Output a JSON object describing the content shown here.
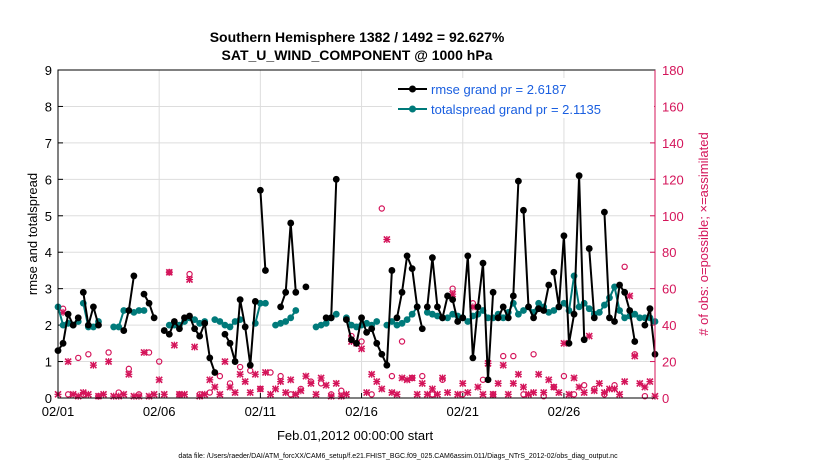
{
  "chart_data": {
    "type": "line",
    "title_line1": "Southern Hemisphere 1382 / 1492 = 92.627%",
    "title_line2": "SAT_U_WIND_COMPONENT @ 1000 hPa",
    "xlabel": "Feb.01,2012 00:00:00 start",
    "ylabel_left": "rmse and totalspread",
    "ylabel_right": "# of obs: o=possible; ×=assimilated",
    "footnote": "data file: /Users/raeder/DAI/ATM_forcXX/CAM6_setup/f.e21.FHIST_BGC.f09_025.CAM6assim.011/Diags_NTrS_2012-02/obs_diag_output.nc",
    "x_range": [
      1,
      30.5
    ],
    "ylim_left": [
      0,
      9
    ],
    "ylim_right": [
      0,
      180
    ],
    "x_tick_values": [
      1,
      6,
      11,
      16,
      21,
      26
    ],
    "x_tick_labels": [
      "02/01",
      "02/06",
      "02/11",
      "02/16",
      "02/21",
      "02/26"
    ],
    "y_left_ticks": [
      0,
      1,
      2,
      3,
      4,
      5,
      6,
      7,
      8,
      9
    ],
    "y_right_ticks": [
      0,
      20,
      40,
      60,
      80,
      100,
      120,
      140,
      160,
      180
    ],
    "colors": {
      "rmse": "#000000",
      "spread": "#007a7a",
      "obs": "#d4145a",
      "right_axis": "#d4145a",
      "legend_text": "#1a5fe0",
      "grid": "#dddddd"
    },
    "series": [
      {
        "name": "rmse grand pr = 2.6187",
        "axis": "left",
        "segments": [
          {
            "x": [
              1.0,
              1.25,
              1.5,
              1.75,
              2.0
            ],
            "y": [
              1.3,
              1.5,
              2.3,
              2.0,
              2.2
            ]
          },
          {
            "x": [
              2.25,
              2.5,
              2.75,
              3.0
            ],
            "y": [
              2.9,
              2.0,
              2.5,
              2.0
            ]
          },
          {
            "x": [
              4.25,
              4.5,
              4.75
            ],
            "y": [
              1.85,
              2.4,
              3.35
            ]
          },
          {
            "x": [
              5.25,
              5.5,
              5.75
            ],
            "y": [
              2.85,
              2.6,
              2.2
            ]
          },
          {
            "x": [
              6.25,
              6.5,
              6.75,
              7.0,
              7.25,
              7.5,
              7.75,
              8.0,
              8.25,
              8.5,
              8.75
            ],
            "y": [
              1.85,
              1.75,
              2.1,
              1.9,
              2.2,
              2.25,
              1.9,
              1.7,
              2.05,
              1.1,
              0.7
            ]
          },
          {
            "x": [
              9.25,
              9.5,
              9.75,
              10.0,
              10.25,
              10.5,
              10.75
            ],
            "y": [
              1.75,
              1.5,
              1.0,
              2.7,
              1.95,
              0.9,
              2.65
            ]
          },
          {
            "x": [
              11.0,
              11.25
            ],
            "y": [
              5.7,
              3.5
            ]
          },
          {
            "x": [
              12.0,
              12.25,
              12.5,
              12.75
            ],
            "y": [
              2.5,
              2.9,
              4.8,
              2.9
            ]
          },
          {
            "x": [
              13.25
            ],
            "y": [
              3.05
            ]
          },
          {
            "x": [
              14.25,
              14.5,
              14.75
            ],
            "y": [
              2.2,
              2.2,
              6.0
            ]
          },
          {
            "x": [
              15.25,
              15.5,
              15.75,
              16.0,
              16.25,
              16.5,
              16.75,
              17.0,
              17.25,
              17.5
            ],
            "y": [
              2.15,
              1.6,
              1.5,
              2.2,
              1.8,
              1.9,
              1.5,
              1.2,
              0.9,
              3.5
            ]
          },
          {
            "x": [
              17.75,
              18.0,
              18.25,
              18.5,
              18.75,
              19.0
            ],
            "y": [
              2.2,
              2.9,
              3.9,
              3.55,
              2.5,
              1.9
            ]
          },
          {
            "x": [
              19.25,
              19.5,
              19.75,
              20.0,
              20.25,
              20.5,
              20.75,
              21.0,
              21.25,
              21.5,
              21.75,
              22.0,
              22.25,
              22.5
            ],
            "y": [
              2.5,
              3.85,
              2.5,
              2.2,
              2.8,
              2.7,
              2.1,
              2.2,
              3.9,
              1.1,
              2.5,
              3.7,
              0.5,
              2.9
            ]
          },
          {
            "x": [
              22.75,
              23.0,
              23.25,
              23.5,
              23.75
            ],
            "y": [
              2.2,
              2.5,
              2.2,
              2.8,
              5.95
            ]
          },
          {
            "x": [
              24.0,
              24.25,
              24.5,
              24.75,
              25.0,
              25.25
            ],
            "y": [
              5.15,
              2.5,
              2.2,
              2.45,
              2.4,
              3.1
            ]
          },
          {
            "x": [
              25.5,
              25.75,
              26.0,
              26.25,
              26.5,
              26.75,
              27.0
            ],
            "y": [
              3.45,
              2.5,
              4.45,
              1.5,
              2.3,
              6.1,
              1.6
            ]
          },
          {
            "x": [
              27.25,
              27.5
            ],
            "y": [
              4.1,
              2.2
            ]
          },
          {
            "x": [
              28.0,
              28.25,
              28.5,
              28.75,
              29.0,
              29.25,
              29.5
            ],
            "y": [
              5.1,
              2.2,
              2.1,
              3.1,
              2.9,
              2.4,
              1.55
            ]
          },
          {
            "x": [
              30.0,
              30.25,
              30.5
            ],
            "y": [
              2.0,
              2.45,
              1.2
            ]
          }
        ]
      },
      {
        "name": "totalspread grand pr = 2.1135",
        "axis": "left",
        "segments": [
          {
            "x": [
              1.0,
              1.25,
              1.5,
              1.75,
              2.0
            ],
            "y": [
              2.5,
              2.0,
              2.05,
              2.0,
              2.1
            ]
          },
          {
            "x": [
              2.25,
              2.5,
              2.75,
              3.0
            ],
            "y": [
              2.6,
              1.95,
              1.95,
              2.1
            ]
          },
          {
            "x": [
              3.75,
              4.0,
              4.25
            ],
            "y": [
              1.95,
              1.95,
              2.4
            ]
          },
          {
            "x": [
              4.75,
              5.0,
              5.25
            ],
            "y": [
              2.35,
              2.4,
              2.4
            ]
          },
          {
            "x": [
              6.5,
              6.75,
              7.0,
              7.25,
              7.5,
              7.75,
              8.0,
              8.25
            ],
            "y": [
              2.0,
              2.0,
              2.0,
              2.1,
              2.2,
              2.15,
              2.05,
              2.1
            ]
          },
          {
            "x": [
              8.75,
              9.0,
              9.25,
              9.5,
              9.75,
              10.0
            ],
            "y": [
              2.15,
              2.1,
              2.0,
              1.95,
              2.1,
              2.15
            ]
          },
          {
            "x": [
              10.75,
              11.0,
              11.25
            ],
            "y": [
              2.05,
              2.6,
              2.6
            ]
          },
          {
            "x": [
              11.75,
              12.0,
              12.25,
              12.5,
              12.75
            ],
            "y": [
              2.0,
              2.05,
              2.1,
              2.2,
              2.4
            ]
          },
          {
            "x": [
              13.75,
              14.0,
              14.25,
              14.5,
              14.75
            ],
            "y": [
              1.95,
              2.0,
              2.05,
              2.2,
              2.3
            ]
          },
          {
            "x": [
              15.25,
              15.5,
              15.75,
              16.0,
              16.25,
              16.5,
              16.75
            ],
            "y": [
              2.2,
              2.0,
              1.95,
              2.0,
              2.05,
              2.0,
              2.1
            ]
          },
          {
            "x": [
              17.25,
              17.5,
              17.75,
              18.0,
              18.25,
              18.5,
              18.75
            ],
            "y": [
              2.0,
              2.1,
              2.0,
              2.05,
              2.15,
              2.3,
              2.5
            ]
          },
          {
            "x": [
              19.25,
              19.5,
              19.75,
              20.0,
              20.25,
              20.5,
              20.75,
              21.0,
              21.25,
              21.5,
              21.75,
              22.0,
              22.25,
              22.5,
              22.75,
              23.0,
              23.25,
              23.5,
              23.75,
              24.0,
              24.25,
              24.5,
              24.75,
              25.0,
              25.25,
              25.5,
              25.75,
              26.0,
              26.25,
              26.5,
              26.75,
              27.0,
              27.25,
              27.5,
              27.75,
              28.0,
              28.25,
              28.5,
              28.75,
              29.0,
              29.25,
              29.5,
              29.75,
              30.0,
              30.25,
              30.5
            ],
            "y": [
              2.35,
              2.3,
              2.25,
              2.2,
              2.2,
              2.3,
              2.25,
              2.2,
              2.1,
              2.25,
              2.3,
              2.4,
              2.2,
              2.2,
              2.3,
              2.2,
              2.35,
              2.6,
              2.3,
              2.4,
              2.5,
              2.35,
              2.6,
              2.5,
              2.35,
              2.4,
              2.5,
              2.6,
              2.4,
              3.35,
              2.5,
              2.6,
              2.45,
              2.3,
              2.35,
              2.55,
              2.75,
              3.05,
              2.4,
              2.2,
              2.25,
              2.3,
              2.2,
              2.2,
              2.2,
              2.1
            ]
          }
        ]
      },
      {
        "name": "obs possible",
        "axis": "right",
        "marker": "circle",
        "x": [
          1.25,
          1.5,
          2.0,
          2.25,
          2.5,
          3.0,
          3.5,
          4.0,
          4.5,
          5.0,
          5.5,
          6.0,
          6.5,
          7.0,
          7.5,
          8.0,
          8.5,
          9.0,
          9.5,
          10.0,
          10.5,
          11.0,
          11.5,
          12.0,
          12.5,
          13.0,
          13.5,
          14.0,
          14.5,
          15.0,
          15.5,
          16.0,
          16.5,
          17.0,
          17.5,
          18.0,
          18.5,
          19.0,
          19.5,
          20.0,
          20.5,
          21.0,
          21.5,
          22.0,
          22.5,
          23.0,
          23.5,
          24.0,
          24.5,
          25.0,
          25.5,
          26.0,
          26.5,
          27.0,
          27.5,
          28.0,
          28.5,
          29.0,
          29.5,
          30.0
        ],
        "y": [
          49,
          2,
          22,
          2,
          24,
          1,
          25,
          3,
          16,
          2,
          25,
          20,
          69,
          2,
          68,
          2,
          3,
          12,
          8,
          17,
          15,
          5,
          14,
          12,
          2,
          5,
          9,
          8,
          2,
          4,
          34,
          31,
          2,
          104,
          12,
          31,
          11,
          12,
          2,
          10,
          60,
          2,
          52,
          10,
          2,
          23,
          23,
          2,
          24,
          1,
          6,
          12,
          2,
          7,
          5,
          2,
          7,
          72,
          24,
          1
        ]
      },
      {
        "name": "obs assimilated",
        "axis": "right",
        "marker": "x",
        "x": [
          1.0,
          1.25,
          1.5,
          1.75,
          2.0,
          2.25,
          2.5,
          2.75,
          3.0,
          3.25,
          3.5,
          3.75,
          4.0,
          4.25,
          4.5,
          4.75,
          5.0,
          5.25,
          5.5,
          5.75,
          6.0,
          6.25,
          6.5,
          6.75,
          7.0,
          7.25,
          7.5,
          7.75,
          8.0,
          8.25,
          8.5,
          8.75,
          9.0,
          9.25,
          9.5,
          9.75,
          10.0,
          10.25,
          10.5,
          10.75,
          11.0,
          11.25,
          11.5,
          11.75,
          12.0,
          12.25,
          12.5,
          12.75,
          13.0,
          13.25,
          13.5,
          13.75,
          14.0,
          14.25,
          14.5,
          14.75,
          15.0,
          15.25,
          15.5,
          15.75,
          16.0,
          16.25,
          16.5,
          16.75,
          17.0,
          17.25,
          17.5,
          17.75,
          18.0,
          18.25,
          18.5,
          18.75,
          19.0,
          19.25,
          19.5,
          19.75,
          20.0,
          20.25,
          20.5,
          20.75,
          21.0,
          21.25,
          21.5,
          21.75,
          22.0,
          22.25,
          22.5,
          22.75,
          23.0,
          23.25,
          23.5,
          23.75,
          24.0,
          24.25,
          24.5,
          24.75,
          25.0,
          25.25,
          25.5,
          25.75,
          26.0,
          26.25,
          26.5,
          26.75,
          27.0,
          27.25,
          27.5,
          27.75,
          28.0,
          28.25,
          28.5,
          28.75,
          29.0,
          29.25,
          29.5,
          29.75,
          30.0,
          30.25,
          30.5
        ],
        "y": [
          2,
          47,
          20,
          2,
          1,
          3,
          2,
          18,
          1,
          2,
          20,
          1,
          1,
          2,
          13,
          1,
          1,
          25,
          1,
          2,
          10,
          2,
          69,
          29,
          2,
          2,
          65,
          28,
          1,
          2,
          10,
          6,
          2,
          20,
          6,
          3,
          13,
          9,
          3,
          13,
          5,
          14,
          2,
          5,
          9,
          3,
          10,
          2,
          4,
          12,
          8,
          2,
          11,
          7,
          1,
          8,
          1,
          2,
          31,
          30,
          27,
          3,
          13,
          9,
          5,
          87,
          3,
          2,
          11,
          10,
          11,
          2,
          8,
          2,
          5,
          2,
          11,
          3,
          57,
          2,
          8,
          3,
          50,
          6,
          2,
          19,
          2,
          8,
          18,
          2,
          8,
          13,
          6,
          2,
          3,
          13,
          3,
          10,
          6,
          3,
          30,
          2,
          11,
          6,
          3,
          34,
          4,
          8,
          3,
          5,
          5,
          2,
          9,
          56,
          23,
          8,
          6,
          9,
          1
        ]
      }
    ],
    "legend": {
      "placement": "top-right",
      "entries": [
        "rmse grand pr = 2.6187",
        "totalspread grand pr = 2.1135"
      ]
    }
  }
}
